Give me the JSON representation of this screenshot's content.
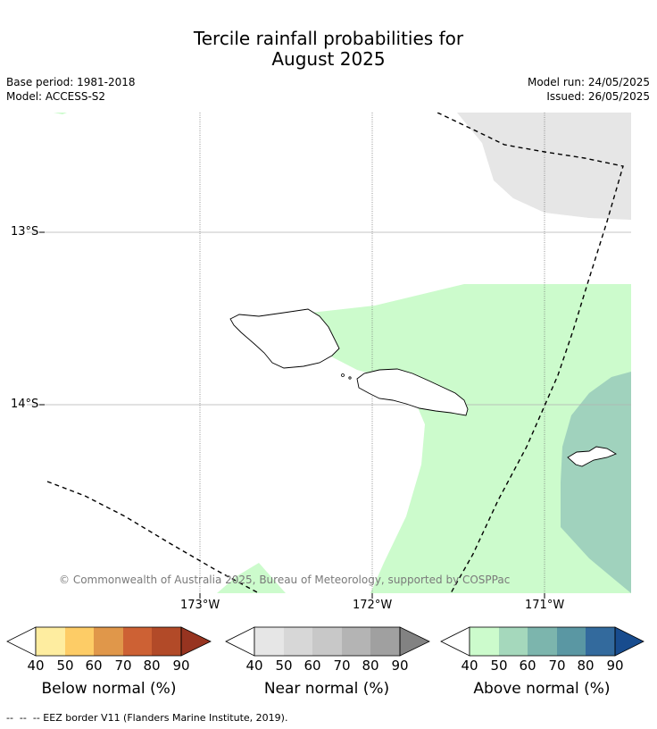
{
  "title": {
    "line1": "Tercile rainfall probabilities for",
    "line2": "August 2025"
  },
  "header": {
    "base_period": "Base period: 1981-2018",
    "model": "Model: ACCESS-S2",
    "model_run": "Model run: 24/05/2025",
    "issued": "Issued: 26/05/2025"
  },
  "map": {
    "lat_labels": [
      "13°S",
      "14°S"
    ],
    "lon_labels": [
      "173°W",
      "172°W",
      "171°W"
    ],
    "copyright": "© Commonwealth of Australia 2025, Bureau of Meteorology, supported by COSPPac",
    "colors": {
      "near40": "#e6e6e6",
      "above40": "#ccfbcc",
      "above50": "#a0d2bd"
    }
  },
  "legends": [
    {
      "title": "Below normal (%)",
      "ticks": [
        "40",
        "50",
        "60",
        "70",
        "80",
        "90"
      ],
      "colors": [
        "#feeda0",
        "#fdcc66",
        "#e0974a",
        "#cd6134",
        "#b24a28",
        "#973420"
      ]
    },
    {
      "title": "Near normal (%)",
      "ticks": [
        "40",
        "50",
        "60",
        "70",
        "80",
        "90"
      ],
      "colors": [
        "#e6e6e6",
        "#d7d7d7",
        "#c8c8c8",
        "#b4b4b4",
        "#a0a0a0",
        "#828282"
      ]
    },
    {
      "title": "Above normal (%)",
      "ticks": [
        "40",
        "50",
        "60",
        "70",
        "80",
        "90"
      ],
      "colors": [
        "#ccfbcc",
        "#a5d8bc",
        "#7cb5ad",
        "#5a97a3",
        "#336a9d",
        "#184c8e"
      ]
    }
  ],
  "footnote": "--  --  -- EEZ border V11 (Flanders Marine Institute, 2019)."
}
